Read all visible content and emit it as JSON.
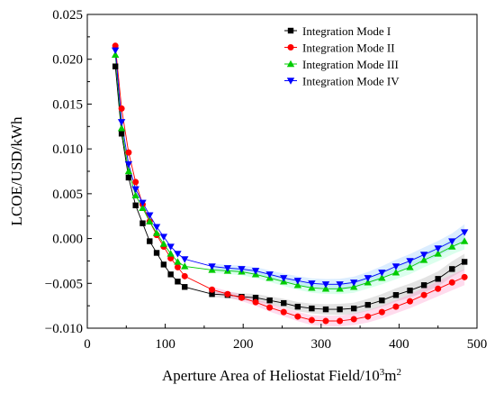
{
  "chart_data": {
    "type": "line",
    "xlabel": "Aperture Area of Heliostat Field/10",
    "xlabel_sup": "3",
    "xlabel_tail": "m",
    "xlabel_sup2": "2",
    "ylabel": "LCOE/USD/kWh",
    "xlim": [
      0,
      500
    ],
    "ylim": [
      -0.01,
      0.025
    ],
    "xticks": [
      "0",
      "100",
      "200",
      "300",
      "400",
      "500"
    ],
    "yticks": [
      "−0.010",
      "−0.005",
      "0.000",
      "0.005",
      "0.010",
      "0.015",
      "0.020",
      "0.025"
    ],
    "grid": false,
    "legend_position": "top-right",
    "series": [
      {
        "name": "Integration Mode I",
        "color": "#000000",
        "band_color": "#b0b0b0",
        "marker": "square",
        "x": [
          36,
          44,
          53,
          62,
          71,
          80,
          89,
          98,
          107,
          116,
          125,
          160,
          180,
          198,
          216,
          234,
          252,
          270,
          288,
          306,
          324,
          342,
          360,
          378,
          396,
          414,
          432,
          450,
          468,
          484
        ],
        "y": [
          0.0192,
          0.0117,
          0.0068,
          0.0037,
          0.0017,
          -0.0003,
          -0.0016,
          -0.0029,
          -0.004,
          -0.0048,
          -0.0054,
          -0.0062,
          -0.0063,
          -0.0065,
          -0.0066,
          -0.0069,
          -0.0072,
          -0.0076,
          -0.0078,
          -0.0079,
          -0.0079,
          -0.0078,
          -0.0074,
          -0.0069,
          -0.0063,
          -0.0058,
          -0.0052,
          -0.0045,
          -0.0034,
          -0.0026
        ]
      },
      {
        "name": "Integration Mode II",
        "color": "#ff0000",
        "band_color": "#ff99cc",
        "marker": "circle",
        "x": [
          36,
          44,
          53,
          62,
          71,
          80,
          89,
          98,
          107,
          116,
          125,
          160,
          180,
          198,
          216,
          234,
          252,
          270,
          288,
          306,
          324,
          342,
          360,
          378,
          396,
          414,
          432,
          450,
          468,
          484
        ],
        "y": [
          0.0215,
          0.0145,
          0.0096,
          0.0063,
          0.0038,
          0.0019,
          0.0004,
          -0.0009,
          -0.0022,
          -0.0032,
          -0.0042,
          -0.0057,
          -0.0062,
          -0.0066,
          -0.0071,
          -0.0077,
          -0.0082,
          -0.0087,
          -0.0091,
          -0.0092,
          -0.0092,
          -0.009,
          -0.0087,
          -0.0082,
          -0.0076,
          -0.007,
          -0.0063,
          -0.0056,
          -0.0049,
          -0.0043
        ]
      },
      {
        "name": "Integration Mode III",
        "color": "#00cc00",
        "band_color": "#99ffcc",
        "marker": "triangle-up",
        "x": [
          36,
          44,
          53,
          62,
          71,
          80,
          89,
          98,
          107,
          116,
          125,
          160,
          180,
          198,
          216,
          234,
          252,
          270,
          288,
          306,
          324,
          342,
          360,
          378,
          396,
          414,
          432,
          450,
          468,
          484
        ],
        "y": [
          0.0205,
          0.0123,
          0.0075,
          0.0048,
          0.0034,
          0.0019,
          0.0006,
          -0.0006,
          -0.0017,
          -0.0026,
          -0.0031,
          -0.0035,
          -0.0036,
          -0.0037,
          -0.004,
          -0.0044,
          -0.0048,
          -0.0052,
          -0.0055,
          -0.0056,
          -0.0056,
          -0.0054,
          -0.0049,
          -0.0044,
          -0.0038,
          -0.0032,
          -0.0024,
          -0.0017,
          -0.0009,
          -0.0003
        ]
      },
      {
        "name": "Integration Mode IV",
        "color": "#0000ff",
        "band_color": "#99ccff",
        "marker": "triangle-down",
        "x": [
          36,
          44,
          53,
          62,
          71,
          80,
          89,
          98,
          107,
          116,
          125,
          160,
          180,
          198,
          216,
          234,
          252,
          270,
          288,
          306,
          324,
          342,
          360,
          378,
          396,
          414,
          432,
          450,
          468,
          484
        ],
        "y": [
          0.021,
          0.013,
          0.0083,
          0.0055,
          0.004,
          0.0026,
          0.0013,
          0.0002,
          -0.0009,
          -0.0017,
          -0.0023,
          -0.0031,
          -0.0033,
          -0.0034,
          -0.0036,
          -0.004,
          -0.0044,
          -0.0047,
          -0.005,
          -0.0051,
          -0.0051,
          -0.0049,
          -0.0044,
          -0.0038,
          -0.0031,
          -0.0025,
          -0.0018,
          -0.0011,
          -0.0003,
          0.0007
        ]
      }
    ]
  }
}
